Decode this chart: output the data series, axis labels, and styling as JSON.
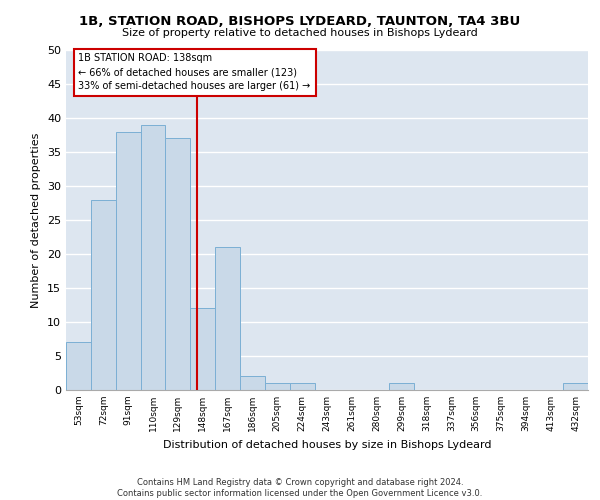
{
  "title1": "1B, STATION ROAD, BISHOPS LYDEARD, TAUNTON, TA4 3BU",
  "title2": "Size of property relative to detached houses in Bishops Lydeard",
  "xlabel": "Distribution of detached houses by size in Bishops Lydeard",
  "ylabel": "Number of detached properties",
  "categories": [
    "53sqm",
    "72sqm",
    "91sqm",
    "110sqm",
    "129sqm",
    "148sqm",
    "167sqm",
    "186sqm",
    "205sqm",
    "224sqm",
    "243sqm",
    "261sqm",
    "280sqm",
    "299sqm",
    "318sqm",
    "337sqm",
    "356sqm",
    "375sqm",
    "394sqm",
    "413sqm",
    "432sqm"
  ],
  "values": [
    7,
    28,
    38,
    39,
    37,
    12,
    21,
    2,
    1,
    1,
    0,
    0,
    0,
    1,
    0,
    0,
    0,
    0,
    0,
    0,
    1
  ],
  "bar_color": "#c9d9e8",
  "bar_edge_color": "#7bafd4",
  "background_color": "#dde6f0",
  "vline_x": 4.75,
  "vline_color": "#cc0000",
  "annotation_text": "1B STATION ROAD: 138sqm\n← 66% of detached houses are smaller (123)\n33% of semi-detached houses are larger (61) →",
  "annotation_box_color": "#ffffff",
  "annotation_box_edge_color": "#cc0000",
  "ylim": [
    0,
    50
  ],
  "yticks": [
    0,
    5,
    10,
    15,
    20,
    25,
    30,
    35,
    40,
    45,
    50
  ],
  "footer1": "Contains HM Land Registry data © Crown copyright and database right 2024.",
  "footer2": "Contains public sector information licensed under the Open Government Licence v3.0."
}
